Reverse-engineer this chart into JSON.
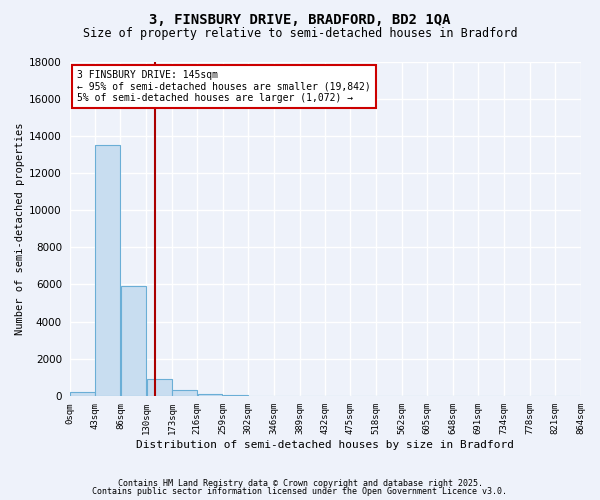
{
  "title_line1": "3, FINSBURY DRIVE, BRADFORD, BD2 1QA",
  "title_line2": "Size of property relative to semi-detached houses in Bradford",
  "xlabel": "Distribution of semi-detached houses by size in Bradford",
  "ylabel": "Number of semi-detached properties",
  "footnote1": "Contains HM Land Registry data © Crown copyright and database right 2025.",
  "footnote2": "Contains public sector information licensed under the Open Government Licence v3.0.",
  "annotation_line1": "3 FINSBURY DRIVE: 145sqm",
  "annotation_line2": "← 95% of semi-detached houses are smaller (19,842)",
  "annotation_line3": "5% of semi-detached houses are larger (1,072) →",
  "property_size": 145,
  "bin_edges": [
    0,
    43,
    86,
    130,
    173,
    216,
    259,
    302,
    346,
    389,
    432,
    475,
    518,
    562,
    605,
    648,
    691,
    734,
    778,
    821,
    864
  ],
  "bar_values": [
    200,
    13500,
    5900,
    900,
    300,
    100,
    50,
    20,
    10,
    5,
    5,
    3,
    2,
    2,
    1,
    1,
    0,
    0,
    0,
    0
  ],
  "bar_color": "#c8ddf0",
  "bar_edge_color": "#6aaed6",
  "red_line_color": "#aa0000",
  "background_color": "#eef2fa",
  "grid_color": "#ffffff",
  "annotation_box_color": "#ffffff",
  "annotation_box_edge": "#cc0000",
  "ylim": [
    0,
    18000
  ],
  "yticks": [
    0,
    2000,
    4000,
    6000,
    8000,
    10000,
    12000,
    14000,
    16000,
    18000
  ],
  "figsize": [
    6.0,
    5.0
  ],
  "dpi": 100
}
